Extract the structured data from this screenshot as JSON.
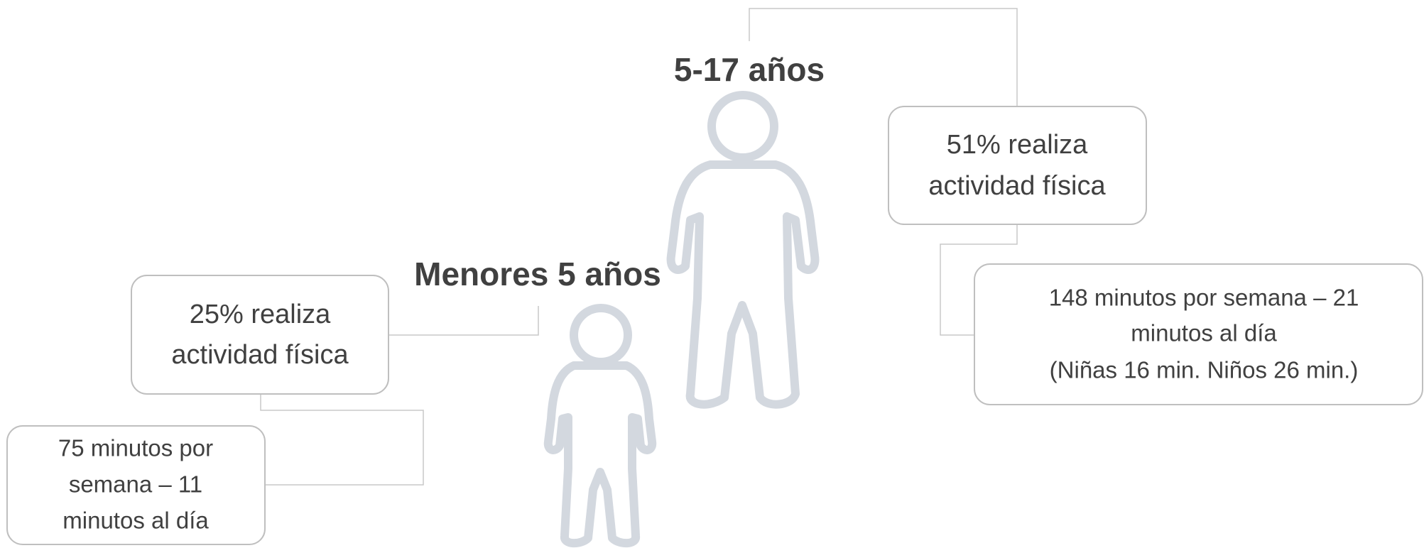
{
  "groups": [
    {
      "label": "5-17 años",
      "stat": [
        "51% realiza",
        "actividad física"
      ],
      "detail": [
        "148 minutos por semana – 21",
        "minutos al día",
        "(Niñas 16 min. Niños 26 min.)"
      ]
    },
    {
      "label": "Menores 5 años",
      "stat": [
        "25% realiza",
        "actividad física"
      ],
      "detail": [
        "75 minutos por",
        "semana – 11",
        "minutos al día"
      ]
    }
  ]
}
